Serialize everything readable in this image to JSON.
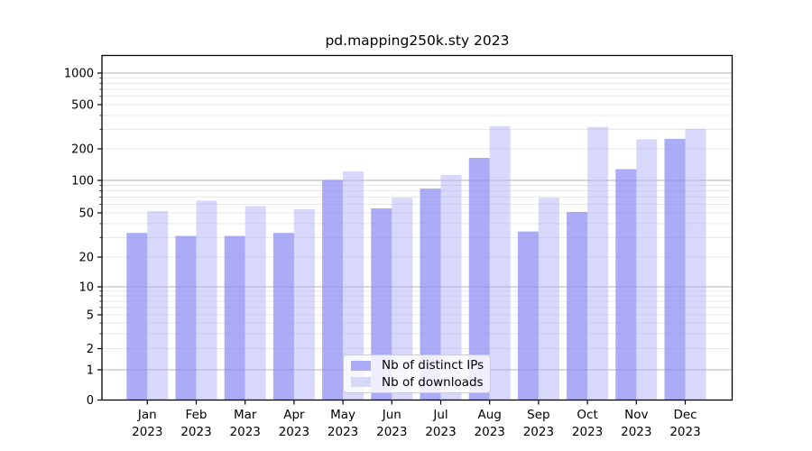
{
  "chart_data": {
    "type": "bar",
    "title": "pd.mapping250k.sty 2023",
    "categories": [
      "Jan",
      "Feb",
      "Mar",
      "Apr",
      "May",
      "Jun",
      "Jul",
      "Aug",
      "Sep",
      "Oct",
      "Nov",
      "Dec"
    ],
    "category_year": "2023",
    "series": [
      {
        "name": "Nb of distinct IPs",
        "color": "#ababf3",
        "fill": "rgba(138,138,242,0.72)",
        "values": [
          33,
          31,
          31,
          33,
          101,
          55,
          84,
          164,
          34,
          51,
          128,
          246
        ]
      },
      {
        "name": "Nb of downloads",
        "color": "#d8d8f9",
        "fill": "rgba(168,168,245,0.45)",
        "values": [
          52,
          65,
          58,
          54,
          122,
          69,
          113,
          320,
          69,
          315,
          244,
          303
        ]
      }
    ],
    "xlabel": "",
    "ylabel": "",
    "yscale": "asinh-like (log above 1, linear 0-1)",
    "y_ticks": [
      0,
      1,
      2,
      5,
      10,
      20,
      50,
      100,
      200,
      500,
      1000
    ],
    "ylim": [
      0,
      1450
    ],
    "grid": "horizontal major (powers of 10, gray) + minor (light)",
    "legend_position": "lower center",
    "colors": {
      "major_grid": "#b4b4b4",
      "minor_grid": "#e8e8e8",
      "axis": "#000000",
      "text": "#000000"
    }
  }
}
